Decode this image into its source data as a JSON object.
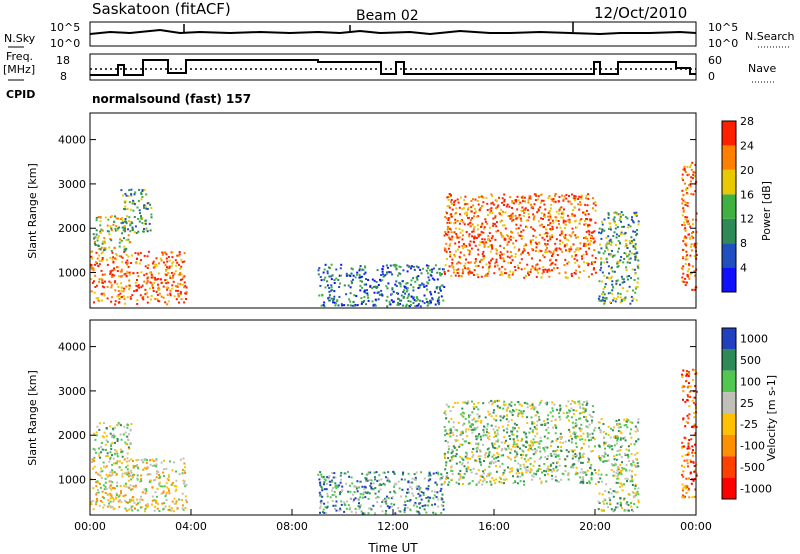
{
  "header": {
    "station": "Saskatoon (fitACF)",
    "beam": "Beam 02",
    "date": "12/Oct/2010"
  },
  "top_panels": {
    "nsky_label": "N.Sky",
    "nsky_ticks": [
      "10^5",
      "10^0"
    ],
    "nsearch_label": "N.Search",
    "freq_label_1": "Freq.",
    "freq_label_2": "[MHz]",
    "freq_ticks": [
      "18",
      "8"
    ],
    "nave_label": "Nave",
    "nave_ticks": [
      "60",
      "0"
    ],
    "cpid_label": "CPID",
    "cpid_value": "normalsound (fast) 157"
  },
  "chart_data": [
    {
      "type": "heatmap",
      "name": "power",
      "ylabel": "Slant Range [km]",
      "xlabel": "",
      "xlim": [
        0,
        24
      ],
      "ylim": [
        200,
        4600
      ],
      "yticks": [
        "1000",
        "2000",
        "3000",
        "4000"
      ],
      "colorbar": {
        "label": "Power [dB]",
        "ticks": [
          "4",
          "8",
          "12",
          "16",
          "20",
          "24",
          "28"
        ],
        "colors": [
          "#1010ff",
          "#2050c0",
          "#2e8a57",
          "#40b040",
          "#e8c800",
          "#ff8000",
          "#ff2000"
        ]
      },
      "regions": [
        {
          "t0": 0.0,
          "t1": 3.8,
          "r0": 300,
          "r1": 1500,
          "level": 6
        },
        {
          "t0": 0.1,
          "t1": 1.6,
          "r0": 1500,
          "r1": 2300,
          "level": 4
        },
        {
          "t0": 1.2,
          "t1": 2.4,
          "r0": 1900,
          "r1": 2900,
          "level": 3
        },
        {
          "t0": 9.0,
          "t1": 14.0,
          "r0": 250,
          "r1": 1200,
          "level": 2
        },
        {
          "t0": 14.0,
          "t1": 20.0,
          "r0": 900,
          "r1": 2800,
          "level": 6
        },
        {
          "t0": 20.1,
          "t1": 21.7,
          "r0": 300,
          "r1": 2400,
          "level": 3
        },
        {
          "t0": 23.4,
          "t1": 24.0,
          "r0": 600,
          "r1": 3500,
          "level": 6
        }
      ]
    },
    {
      "type": "heatmap",
      "name": "velocity",
      "ylabel": "Slant Range [km]",
      "xlabel": "Time UT",
      "xlim": [
        0,
        24
      ],
      "ylim": [
        200,
        4600
      ],
      "xticks": [
        "00:00",
        "04:00",
        "08:00",
        "12:00",
        "16:00",
        "20:00",
        "00:00"
      ],
      "yticks": [
        "1000",
        "2000",
        "3000",
        "4000"
      ],
      "colorbar": {
        "label": "Velocity [m s-1]",
        "ticks": [
          "1000",
          "500",
          "100",
          "25",
          "-25",
          "-100",
          "-500",
          "-1000"
        ],
        "colors": [
          "#2040c0",
          "#2e8a57",
          "#50c850",
          "#c0c0b8",
          "#ffc000",
          "#ff9000",
          "#ff4000",
          "#ff0000"
        ]
      },
      "regions": [
        {
          "t0": 0.0,
          "t1": 3.8,
          "r0": 300,
          "r1": 1500,
          "level": 4
        },
        {
          "t0": 0.1,
          "t1": 1.6,
          "r0": 1500,
          "r1": 2300,
          "level": 3
        },
        {
          "t0": 9.0,
          "t1": 14.0,
          "r0": 250,
          "r1": 1200,
          "level": 2
        },
        {
          "t0": 14.0,
          "t1": 20.0,
          "r0": 900,
          "r1": 2800,
          "level": 3
        },
        {
          "t0": 20.1,
          "t1": 21.7,
          "r0": 300,
          "r1": 2400,
          "level": 3
        },
        {
          "t0": 23.4,
          "t1": 24.0,
          "r0": 600,
          "r1": 3500,
          "level": 6
        }
      ]
    }
  ],
  "colors": {
    "axis": "#000000",
    "background": "#ffffff"
  }
}
